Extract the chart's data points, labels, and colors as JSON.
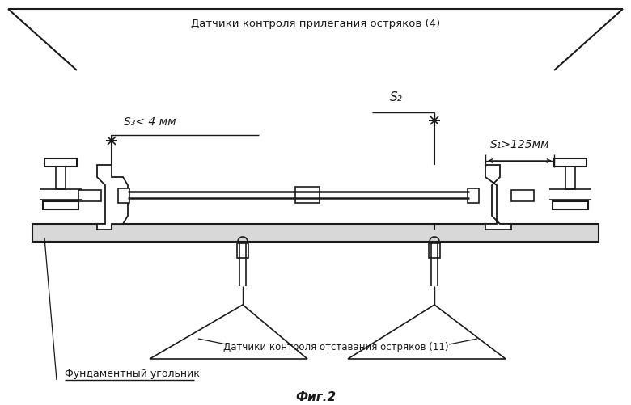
{
  "title": "Фиг.2",
  "top_label": "Датчики контроля прилегания остряков (4)",
  "bottom_label": "Датчики контроля отставания остряков (11)",
  "corner_label": "Фундаментный угольник",
  "s3_label": "S₃< 4 мм",
  "s2_label": "S₂",
  "s1_label": "S₁>125мм",
  "bg_color": "#ffffff",
  "line_color": "#1a1a1a",
  "fig_width": 7.8,
  "fig_height": 5.02
}
